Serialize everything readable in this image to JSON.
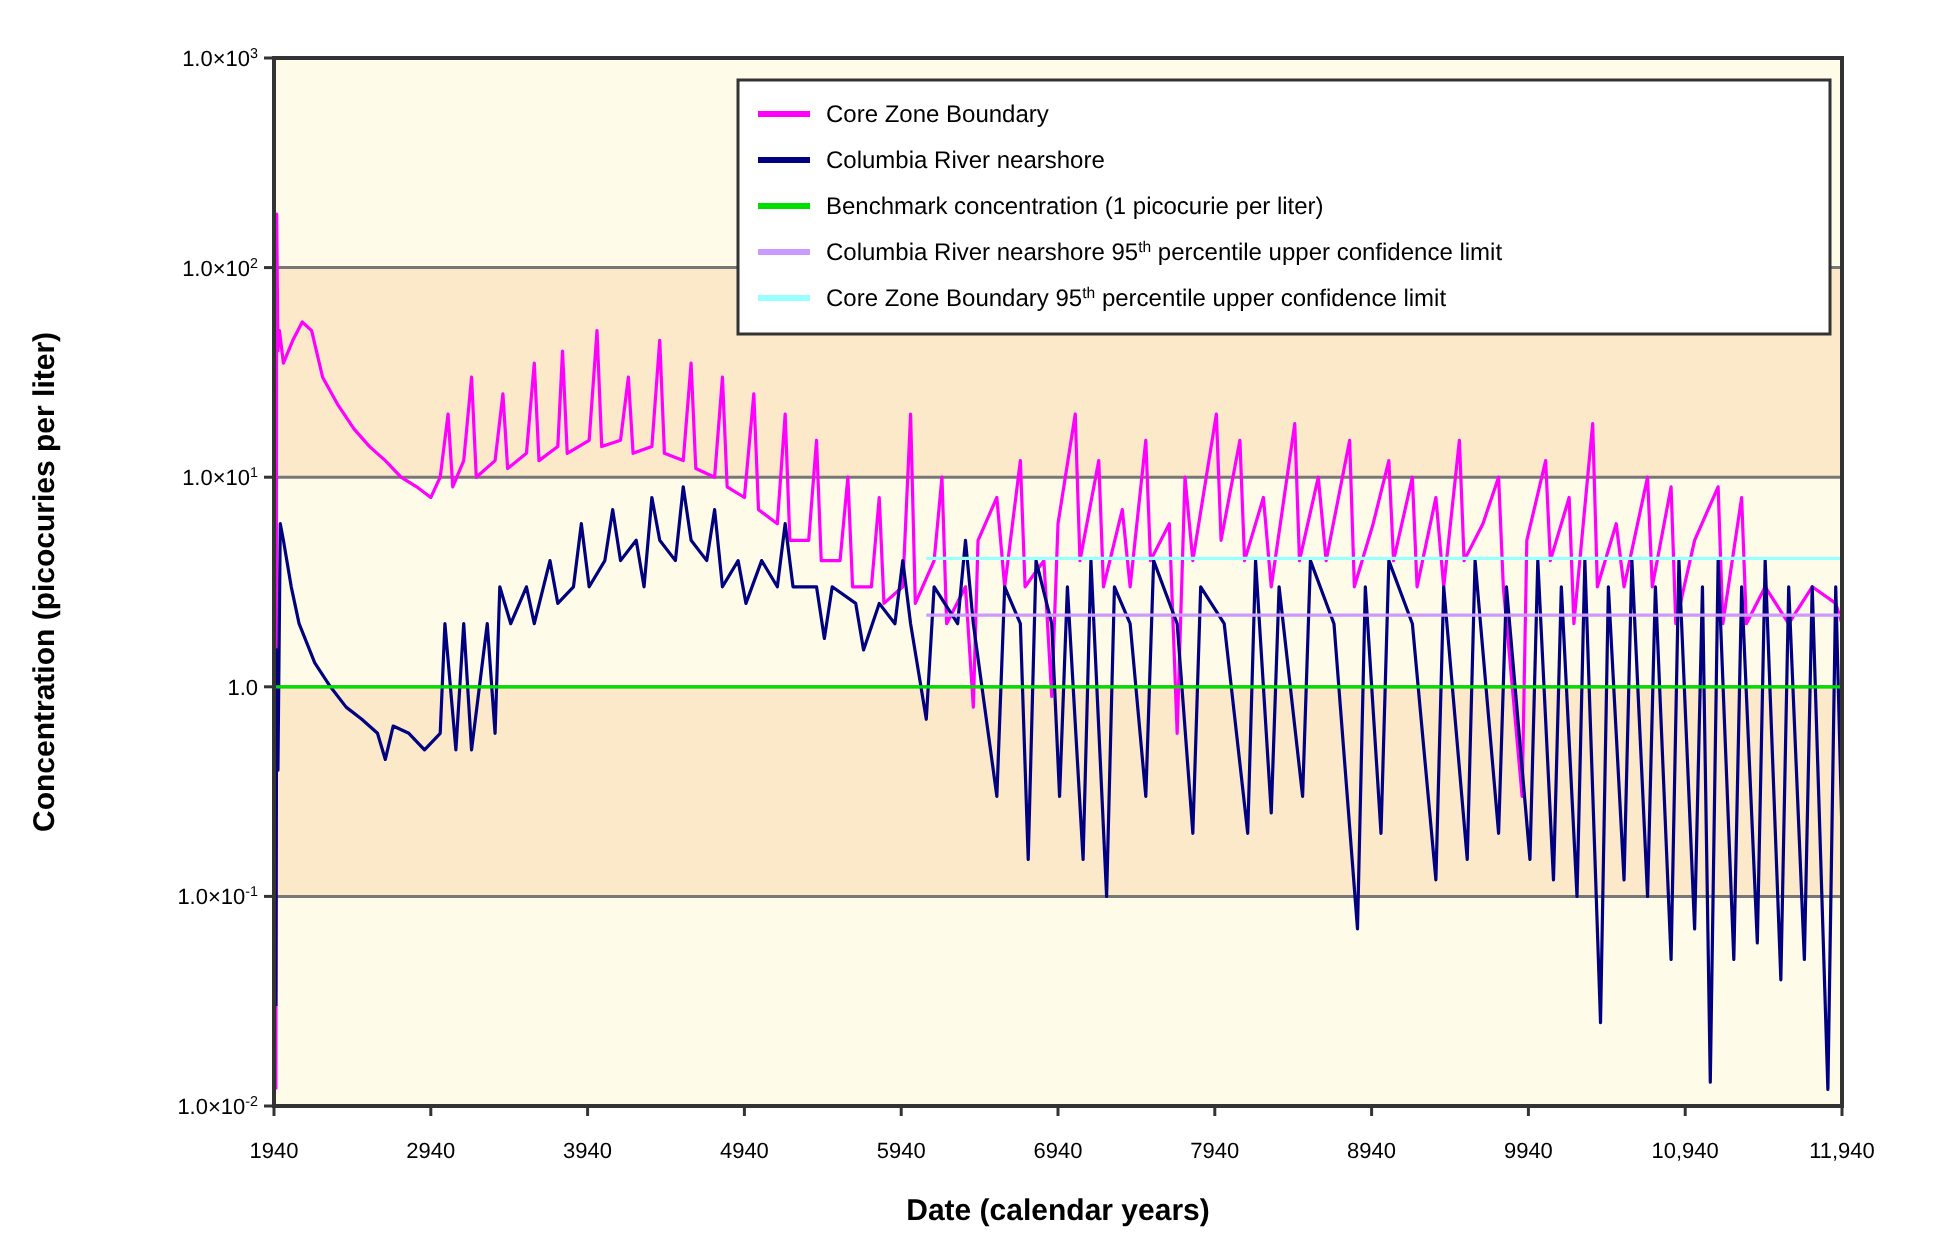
{
  "chart_data": {
    "type": "line",
    "xlabel": "Date (calendar years)",
    "ylabel": "Concentration (picocuries per liter)",
    "log": "y",
    "grid": "y",
    "legend": "top right",
    "line_style": "solid",
    "xlim": [
      1940,
      11940
    ],
    "xticks": [
      1940,
      2940,
      3940,
      4940,
      5940,
      6940,
      7940,
      8940,
      9940,
      {
        "value": 10940,
        "label": "10,940"
      },
      {
        "value": 11940,
        "label": "11,940"
      }
    ],
    "ylim": [
      0.01,
      1000
    ],
    "yticks": [
      {
        "value": 0.01,
        "label": "1.0×10$^{-2}$"
      },
      {
        "value": 0.1,
        "label": "1.0×10$^{-1}$"
      },
      {
        "value": 1,
        "label": "1.0"
      },
      {
        "value": 10,
        "label": "1.0×10$^{1}$"
      },
      {
        "value": 100,
        "label": "1.0×10$^{2}$"
      },
      {
        "value": 1000,
        "label": "1.0×10$^{3}$"
      }
    ],
    "bands": [
      {
        "axis": "y",
        "from": 10,
        "to": 100,
        "color": "#fbe9c9"
      },
      {
        "axis": "y",
        "from": 0.1,
        "to": 1,
        "color": "#fbe9c9"
      }
    ],
    "series": [
      {
        "name": "Core Zone Boundary",
        "color": "#ff00ff",
        "x": [
          1952,
          1957,
          1965,
          1975,
          2000,
          2060,
          2120,
          2180,
          2250,
          2350,
          2450,
          2550,
          2650,
          2750,
          2850,
          2940,
          3000,
          3050,
          3080,
          3150,
          3200,
          3230,
          3350,
          3400,
          3430,
          3550,
          3600,
          3630,
          3750,
          3780,
          3810,
          3950,
          4000,
          4030,
          4150,
          4200,
          4230,
          4350,
          4400,
          4430,
          4550,
          4600,
          4630,
          4750,
          4800,
          4830,
          4940,
          5000,
          5030,
          5150,
          5200,
          5230,
          5350,
          5400,
          5430,
          5550,
          5600,
          5630,
          5750,
          5800,
          5830,
          5950,
          6000,
          6030,
          6150,
          6200,
          6230,
          6350,
          6400,
          6430,
          6550,
          6600,
          6700,
          6730,
          6850,
          6900,
          6940,
          7050,
          7080,
          7200,
          7230,
          7350,
          7400,
          7500,
          7530,
          7650,
          7700,
          7750,
          7800,
          7950,
          7980,
          8100,
          8130,
          8250,
          8300,
          8450,
          8480,
          8600,
          8650,
          8800,
          8830,
          8950,
          9050,
          9080,
          9200,
          9230,
          9350,
          9400,
          9500,
          9530,
          9650,
          9750,
          9780,
          9900,
          9930,
          10050,
          10080,
          10200,
          10230,
          10350,
          10380,
          10500,
          10550,
          10700,
          10730,
          10850,
          10880,
          11000,
          11150,
          11180,
          11300,
          11330,
          11450,
          11600,
          11750,
          11900,
          11940
        ],
        "values": [
          0.012,
          180,
          40,
          50,
          35,
          45,
          55,
          50,
          30,
          22,
          17,
          14,
          12,
          10,
          9,
          8,
          10,
          20,
          9,
          12,
          30,
          10,
          12,
          25,
          11,
          13,
          35,
          12,
          14,
          40,
          13,
          15,
          50,
          14,
          15,
          30,
          13,
          14,
          45,
          13,
          12,
          35,
          11,
          10,
          30,
          9,
          8,
          25,
          7,
          6,
          20,
          5,
          5,
          15,
          4,
          4,
          10,
          3,
          3,
          8,
          2.5,
          3,
          20,
          2.5,
          4,
          10,
          2,
          3,
          0.8,
          5,
          8,
          3,
          12,
          3,
          4,
          0.9,
          6,
          20,
          4,
          12,
          3,
          7,
          3,
          15,
          4,
          6,
          0.6,
          10,
          4,
          20,
          5,
          15,
          4,
          8,
          3,
          18,
          4,
          10,
          4,
          15,
          3,
          6,
          12,
          4,
          10,
          3,
          8,
          3,
          15,
          4,
          6,
          10,
          3,
          0.3,
          5,
          12,
          4,
          8,
          2,
          18,
          3,
          6,
          3,
          10,
          3,
          9,
          2,
          5,
          9,
          2,
          8,
          2,
          3,
          2,
          3,
          2.5,
          2
        ]
      },
      {
        "name": "Columbia River nearshore",
        "color": "#000080",
        "x": [
          1952,
          1957,
          1965,
          1980,
          2000,
          2050,
          2100,
          2200,
          2300,
          2400,
          2500,
          2600,
          2650,
          2700,
          2800,
          2900,
          3000,
          3030,
          3100,
          3150,
          3200,
          3300,
          3350,
          3380,
          3450,
          3550,
          3600,
          3700,
          3750,
          3850,
          3900,
          3950,
          4050,
          4100,
          4150,
          4250,
          4300,
          4350,
          4400,
          4500,
          4550,
          4600,
          4700,
          4750,
          4800,
          4900,
          4950,
          5050,
          5150,
          5200,
          5250,
          5400,
          5450,
          5500,
          5650,
          5700,
          5800,
          5900,
          5950,
          6000,
          6100,
          6150,
          6300,
          6350,
          6400,
          6550,
          6600,
          6700,
          6750,
          6800,
          6900,
          6950,
          7000,
          7100,
          7150,
          7250,
          7300,
          7400,
          7500,
          7550,
          7700,
          7800,
          7850,
          8000,
          8150,
          8200,
          8300,
          8350,
          8500,
          8550,
          8700,
          8850,
          8900,
          9000,
          9050,
          9200,
          9350,
          9400,
          9550,
          9600,
          9750,
          9800,
          9950,
          10000,
          10100,
          10150,
          10250,
          10300,
          10400,
          10450,
          10550,
          10600,
          10700,
          10750,
          10850,
          10900,
          11000,
          11050,
          11100,
          11150,
          11250,
          11300,
          11400,
          11450,
          11550,
          11600,
          11700,
          11750,
          11850,
          11900,
          11940
        ],
        "values": [
          0.03,
          1.5,
          0.4,
          6,
          5,
          3,
          2,
          1.3,
          1,
          0.8,
          0.7,
          0.6,
          0.45,
          0.65,
          0.6,
          0.5,
          0.6,
          2,
          0.5,
          2,
          0.5,
          2,
          0.6,
          3,
          2,
          3,
          2,
          4,
          2.5,
          3,
          6,
          3,
          4,
          7,
          4,
          5,
          3,
          8,
          5,
          4,
          9,
          5,
          4,
          7,
          3,
          4,
          2.5,
          4,
          3,
          6,
          3,
          3,
          1.7,
          3,
          2.5,
          1.5,
          2.5,
          2,
          4,
          2,
          0.7,
          3,
          2,
          5,
          2,
          0.3,
          3,
          2,
          0.15,
          4,
          2,
          0.3,
          3,
          0.15,
          4,
          0.1,
          3,
          2,
          0.3,
          4,
          2,
          0.2,
          3,
          2,
          0.2,
          4,
          0.25,
          3,
          0.3,
          4,
          2,
          0.07,
          3,
          0.2,
          4,
          2,
          0.12,
          3,
          0.15,
          4,
          0.2,
          3,
          0.15,
          4,
          0.12,
          3,
          0.1,
          4,
          0.025,
          3,
          0.12,
          4,
          0.1,
          3,
          0.05,
          4,
          0.07,
          3,
          0.013,
          4,
          0.05,
          3,
          0.06,
          4,
          0.04,
          3,
          0.05,
          3,
          0.012,
          3,
          0.2
        ]
      },
      {
        "name": "Benchmark concentration (1 picocurie per liter)",
        "color": "#00e000",
        "x": [
          1940,
          11940
        ],
        "values": [
          1,
          1
        ]
      },
      {
        "name": "Columbia River nearshore 95$^{th}$ percentile upper confidence limit",
        "color": "#cc99ff",
        "x": [
          6100,
          11940
        ],
        "values": [
          2.2,
          2.2
        ]
      },
      {
        "name": "Core Zone Boundary 95$^{th}$ percentile upper confidence limit",
        "color": "#99ffff",
        "x": [
          6100,
          11940
        ],
        "values": [
          4.1,
          4.1
        ]
      }
    ]
  }
}
